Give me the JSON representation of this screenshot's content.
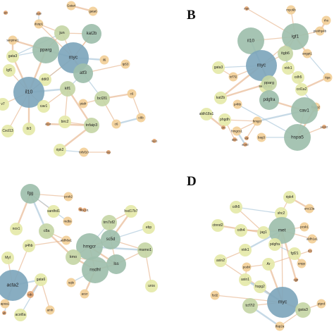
{
  "panels": [
    {
      "letter": "",
      "nodes": [
        {
          "id": "sirt",
          "label": "sirt"
        },
        {
          "id": "ppar",
          "label": "ppar"
        },
        {
          "id": "gata4",
          "label": "Gata4"
        },
        {
          "id": "gata6",
          "label": "gata6"
        },
        {
          "id": "dusp1",
          "label": "dusp1"
        },
        {
          "id": "jun",
          "label": "jun"
        },
        {
          "id": "serpine1",
          "label": "serpine1"
        },
        {
          "id": "kat2b",
          "label": "kat2b"
        },
        {
          "id": "pparg",
          "label": "pparg"
        },
        {
          "id": "myc",
          "label": "myc"
        },
        {
          "id": "gata3",
          "label": "gata3"
        },
        {
          "id": "igf1",
          "label": "Igf1"
        },
        {
          "id": "il6",
          "label": "il6"
        },
        {
          "id": "tp53",
          "label": "tp53"
        },
        {
          "id": "ddit3",
          "label": "ddit3"
        },
        {
          "id": "atf3",
          "label": "atf3"
        },
        {
          "id": "il10",
          "label": "il10"
        },
        {
          "id": "klf1",
          "label": "klf1"
        },
        {
          "id": "cav1",
          "label": "cav1"
        },
        {
          "id": "bcl2l1",
          "label": "bcl2l1"
        },
        {
          "id": "c6a",
          "label": "c6"
        },
        {
          "id": "v7",
          "label": "v7"
        },
        {
          "id": "ptafr",
          "label": "ptafr"
        },
        {
          "id": "birc2",
          "label": "birc2"
        },
        {
          "id": "c8b",
          "label": "c8b"
        },
        {
          "id": "cxcl13",
          "label": "Cxcl13"
        },
        {
          "id": "tlr3",
          "label": "tlr3"
        },
        {
          "id": "nfrsf",
          "label": "nfrsf"
        },
        {
          "id": "tnfaip3",
          "label": "tnfaip3"
        },
        {
          "id": "c6b",
          "label": "c6"
        },
        {
          "id": "ripk2",
          "label": "ripk2"
        },
        {
          "id": "tnfsf10",
          "label": "tnfsf10"
        },
        {
          "id": "trip",
          "label": "trip"
        },
        {
          "id": "nox1",
          "label": "nox1"
        }
      ],
      "edges": [
        [
          "myc",
          "pparg"
        ],
        [
          "myc",
          "jun"
        ],
        [
          "myc",
          "kat2b"
        ],
        [
          "myc",
          "atf3"
        ],
        [
          "myc",
          "il10"
        ],
        [
          "myc",
          "ddit3"
        ],
        [
          "pparg",
          "il10"
        ],
        [
          "pparg",
          "jun"
        ],
        [
          "pparg",
          "gata3"
        ],
        [
          "pparg",
          "serpine1"
        ],
        [
          "il10",
          "igf1"
        ],
        [
          "il10",
          "cav1"
        ],
        [
          "il10",
          "klf1"
        ],
        [
          "il10",
          "v7"
        ],
        [
          "il10",
          "cxcl13"
        ],
        [
          "il10",
          "gata3"
        ],
        [
          "klf1",
          "atf3"
        ],
        [
          "klf1",
          "birc2"
        ],
        [
          "klf1",
          "tnfaip3"
        ],
        [
          "klf1",
          "cav1"
        ],
        [
          "atf3",
          "bcl2l1"
        ],
        [
          "bcl2l1",
          "c6a"
        ],
        [
          "bcl2l1",
          "ptafr"
        ],
        [
          "c6a",
          "c8b"
        ],
        [
          "c6b",
          "c8b"
        ],
        [
          "c6b",
          "bcl2l1"
        ],
        [
          "birc2",
          "tnfaip3"
        ],
        [
          "tnfaip3",
          "ripk2"
        ],
        [
          "ripk2",
          "tnfsf10"
        ],
        [
          "tnfsf10",
          "trip"
        ],
        [
          "tlr3",
          "il10"
        ],
        [
          "jun",
          "kat2b"
        ],
        [
          "jun",
          "gata3"
        ],
        [
          "gata4",
          "gata6"
        ],
        [
          "dusp1",
          "jun"
        ],
        [
          "dusp1",
          "myc"
        ],
        [
          "il6",
          "myc"
        ],
        [
          "tp53",
          "atf3"
        ],
        [
          "ddit3",
          "il10"
        ],
        [
          "nfrsf",
          "tnfaip3"
        ],
        [
          "ppar",
          "dusp1"
        ],
        [
          "kat2b",
          "myc"
        ],
        [
          "serpine1",
          "gata3"
        ]
      ]
    },
    {
      "letter": "B",
      "nodes": [
        {
          "id": "myb",
          "label": "myb"
        },
        {
          "id": "myo6b",
          "label": "myo6b"
        },
        {
          "id": "igf1",
          "label": "igf1"
        },
        {
          "id": "il10",
          "label": "il10"
        },
        {
          "id": "rho",
          "label": "rho"
        },
        {
          "id": "plekh",
          "label": "plekhp4b"
        },
        {
          "id": "myc",
          "label": "myc"
        },
        {
          "id": "itgb6",
          "label": "itgb6"
        },
        {
          "id": "angpt1",
          "label": "angpt1"
        },
        {
          "id": "gata3",
          "label": "gata3"
        },
        {
          "id": "ntrk1",
          "label": "ntrk1"
        },
        {
          "id": "tcf7l2",
          "label": "tcf7l2"
        },
        {
          "id": "itga",
          "label": "itga"
        },
        {
          "id": "cdh5",
          "label": "cdh5"
        },
        {
          "id": "col1a2",
          "label": "col1a2"
        },
        {
          "id": "serpine1",
          "label": "serpine1"
        },
        {
          "id": "pparg",
          "label": "pparg"
        },
        {
          "id": "kat2b",
          "label": "kat2b"
        },
        {
          "id": "pdgfra",
          "label": "pdgfra"
        },
        {
          "id": "hspg2",
          "label": "hspg2"
        },
        {
          "id": "aldh18a1",
          "label": "aldh18a1"
        },
        {
          "id": "phgdh",
          "label": "phgdh"
        },
        {
          "id": "hmgcr",
          "label": "hmgcr"
        },
        {
          "id": "cav1",
          "label": "cav1"
        },
        {
          "id": "hmgcs1",
          "label": "hmgcs1"
        },
        {
          "id": "bag3",
          "label": "bag3"
        },
        {
          "id": "hspa5",
          "label": "hspa5"
        },
        {
          "id": "cth",
          "label": "cth"
        },
        {
          "id": "ldlr",
          "label": "ldlr"
        },
        {
          "id": "acat2",
          "label": "acat2"
        },
        {
          "id": "asns",
          "label": "asns"
        },
        {
          "id": "sesn2",
          "label": "sesn2"
        },
        {
          "id": "p4hb",
          "label": "p4hb"
        }
      ],
      "edges": [
        [
          "myc",
          "il10"
        ],
        [
          "myc",
          "igf1"
        ],
        [
          "myc",
          "itgb6"
        ],
        [
          "myc",
          "pparg"
        ],
        [
          "myc",
          "gata3"
        ],
        [
          "myc",
          "tcf7l2"
        ],
        [
          "myc",
          "kat2b"
        ],
        [
          "il10",
          "igf1"
        ],
        [
          "il10",
          "pparg"
        ],
        [
          "igf1",
          "angpt1"
        ],
        [
          "igf1",
          "itgb6"
        ],
        [
          "igf1",
          "myo6b"
        ],
        [
          "itgb6",
          "ntrk1"
        ],
        [
          "ntrk1",
          "cdh5"
        ],
        [
          "cdh5",
          "col1a2"
        ],
        [
          "col1a2",
          "itga"
        ],
        [
          "angpt1",
          "itga"
        ],
        [
          "serpine1",
          "pdgfra"
        ],
        [
          "pdgfra",
          "cav1"
        ],
        [
          "cav1",
          "hspa5"
        ],
        [
          "hspa5",
          "bag3"
        ],
        [
          "hspa5",
          "hspg2"
        ],
        [
          "hmgcr",
          "hmgcs1"
        ],
        [
          "hmgcr",
          "ldlr"
        ],
        [
          "hmgcs1",
          "acat2"
        ],
        [
          "phgdh",
          "asns"
        ],
        [
          "phgdh",
          "hmgcr"
        ],
        [
          "aldh18a1",
          "cth"
        ],
        [
          "hspg2",
          "col1a2"
        ],
        [
          "pparg",
          "serpine1"
        ],
        [
          "kat2b",
          "pparg"
        ],
        [
          "sesn2",
          "hspa5"
        ],
        [
          "p4hb",
          "hspa5"
        ],
        [
          "rho",
          "plekh"
        ],
        [
          "plekh",
          "igf1"
        ],
        [
          "myb",
          "igf1"
        ],
        [
          "cav1",
          "hmgcr"
        ],
        [
          "gata3",
          "tcf7l2"
        ]
      ]
    },
    {
      "letter": "",
      "nodes": [
        {
          "id": "fgg",
          "label": "fgg"
        },
        {
          "id": "pcsk2",
          "label": "pcsk2"
        },
        {
          "id": "sardh1",
          "label": "sardhd1"
        },
        {
          "id": "ftl",
          "label": "ftl"
        },
        {
          "id": "npc1l1",
          "label": "npc1l1"
        },
        {
          "id": "hsd17b7",
          "label": "hsd17b7"
        },
        {
          "id": "tm7sf2",
          "label": "tm7sf2"
        },
        {
          "id": "nox1",
          "label": "nox1"
        },
        {
          "id": "c8a",
          "label": "c8a"
        },
        {
          "id": "mdbs",
          "label": "mdbs"
        },
        {
          "id": "ebp",
          "label": "ebp"
        },
        {
          "id": "sc5d",
          "label": "sc5d"
        },
        {
          "id": "aldh8a1",
          "label": "aldh8a1"
        },
        {
          "id": "hmgcr",
          "label": "hmgcr"
        },
        {
          "id": "p4hb",
          "label": "p4hb"
        },
        {
          "id": "msmo1",
          "label": "msmo1"
        },
        {
          "id": "kmo",
          "label": "kmo"
        },
        {
          "id": "lss",
          "label": "lss"
        },
        {
          "id": "myl",
          "label": "Myl"
        },
        {
          "id": "nsdhl",
          "label": "nsdhl"
        },
        {
          "id": "acta2",
          "label": "acta2"
        },
        {
          "id": "gata6",
          "label": "gata6"
        },
        {
          "id": "sqle",
          "label": "sqle"
        },
        {
          "id": "acer",
          "label": "acer"
        },
        {
          "id": "uros",
          "label": "uros"
        },
        {
          "id": "cdc",
          "label": "cdc"
        },
        {
          "id": "apoa1",
          "label": "apoa1"
        },
        {
          "id": "acot6a",
          "label": "acot6a"
        },
        {
          "id": "amh",
          "label": "amh"
        },
        {
          "id": "ab",
          "label": "ab"
        }
      ],
      "edges": [
        [
          "fgg",
          "c8a"
        ],
        [
          "fgg",
          "pcsk2"
        ],
        [
          "fgg",
          "sardh1"
        ],
        [
          "fgg",
          "nox1"
        ],
        [
          "fgg",
          "mdbs"
        ],
        [
          "c8a",
          "aldh8a1"
        ],
        [
          "c8a",
          "kmo"
        ],
        [
          "hmgcr",
          "sc5d"
        ],
        [
          "hmgcr",
          "tm7sf2"
        ],
        [
          "hmgcr",
          "lss"
        ],
        [
          "hmgcr",
          "nsdhl"
        ],
        [
          "hmgcr",
          "kmo"
        ],
        [
          "hmgcr",
          "msmo1"
        ],
        [
          "sc5d",
          "tm7sf2"
        ],
        [
          "sc5d",
          "lss"
        ],
        [
          "sc5d",
          "hsd17b7"
        ],
        [
          "sc5d",
          "ebp"
        ],
        [
          "sc5d",
          "msmo1"
        ],
        [
          "lss",
          "nsdhl"
        ],
        [
          "lss",
          "msmo1"
        ],
        [
          "nsdhl",
          "sqle"
        ],
        [
          "nsdhl",
          "kmo"
        ],
        [
          "tm7sf2",
          "hsd17b7"
        ],
        [
          "acta2",
          "myl"
        ],
        [
          "acta2",
          "gata6"
        ],
        [
          "acta2",
          "apoa1"
        ],
        [
          "acta2",
          "p4hb"
        ],
        [
          "gata6",
          "cdc"
        ],
        [
          "gata6",
          "acot6a"
        ],
        [
          "amh",
          "gata6"
        ],
        [
          "acer",
          "nsdhl"
        ],
        [
          "uros",
          "msmo1"
        ],
        [
          "ab",
          "acta2"
        ],
        [
          "ftl",
          "npc1l1"
        ],
        [
          "p4hb",
          "aldh8a1"
        ],
        [
          "kmo",
          "lss"
        ]
      ]
    },
    {
      "letter": "D",
      "nodes": [
        {
          "id": "ripk4",
          "label": "ripk4"
        },
        {
          "id": "cdh5",
          "label": "cdh5"
        },
        {
          "id": "shc2",
          "label": "shc2"
        },
        {
          "id": "unc13a",
          "label": "unc13a"
        },
        {
          "id": "ctnnd2",
          "label": "ctnnd2"
        },
        {
          "id": "cdh4",
          "label": "cdh4"
        },
        {
          "id": "met",
          "label": "met"
        },
        {
          "id": "pcsk1",
          "label": "pcsk1"
        },
        {
          "id": "jag1",
          "label": "jag1"
        },
        {
          "id": "aldh1a1",
          "label": "aldh1a1"
        },
        {
          "id": "pdgfra",
          "label": "pdgfra"
        },
        {
          "id": "ntrk1",
          "label": "ntrk1"
        },
        {
          "id": "fgf21",
          "label": "fgf21"
        },
        {
          "id": "lrrc",
          "label": "lrrc"
        },
        {
          "id": "axin2",
          "label": "axin2"
        },
        {
          "id": "podxl",
          "label": "podxl"
        },
        {
          "id": "ar",
          "label": "Ar"
        },
        {
          "id": "enpp",
          "label": "enpp"
        },
        {
          "id": "axin1",
          "label": "axin1"
        },
        {
          "id": "fzd2",
          "label": "fzd2"
        },
        {
          "id": "hspg2",
          "label": "hspg2"
        },
        {
          "id": "myc",
          "label": "myc"
        },
        {
          "id": "tcf7l2",
          "label": "tcf7l2"
        },
        {
          "id": "gata3",
          "label": "gata3"
        },
        {
          "id": "tfap2a",
          "label": "tfap2a"
        },
        {
          "id": "ptprd",
          "label": "ptprd"
        },
        {
          "id": "ngfr",
          "label": "ngfr"
        }
      ],
      "edges": [
        [
          "myc",
          "axin1"
        ],
        [
          "myc",
          "axin2"
        ],
        [
          "myc",
          "tcf7l2"
        ],
        [
          "myc",
          "gata3"
        ],
        [
          "myc",
          "hspg2"
        ],
        [
          "myc",
          "fzd2"
        ],
        [
          "myc",
          "ar"
        ],
        [
          "myc",
          "met"
        ],
        [
          "met",
          "jag1"
        ],
        [
          "met",
          "pdgfra"
        ],
        [
          "met",
          "cdh4"
        ],
        [
          "met",
          "aldh1a1"
        ],
        [
          "met",
          "ntrk1"
        ],
        [
          "met",
          "pcsk1"
        ],
        [
          "jag1",
          "cdh5"
        ],
        [
          "jag1",
          "ctnnd2"
        ],
        [
          "cdh5",
          "shc2"
        ],
        [
          "shc2",
          "ripk4"
        ],
        [
          "ripk4",
          "unc13a"
        ],
        [
          "ntrk1",
          "axin2"
        ],
        [
          "pdgfra",
          "fgf21"
        ],
        [
          "fgf21",
          "enpp"
        ],
        [
          "lrrc",
          "ar"
        ],
        [
          "axin1",
          "podxl"
        ],
        [
          "tcf7l2",
          "tfap2a"
        ],
        [
          "gata3",
          "ptprd"
        ],
        [
          "gata3",
          "tfap2a"
        ],
        [
          "ngfr",
          "met"
        ],
        [
          "hspg2",
          "axin1"
        ],
        [
          "ar",
          "podxl"
        ]
      ]
    }
  ],
  "colors": {
    "hub_blue": "#7ea6bc",
    "hub_teal": "#9ebfad",
    "mid_green": "#c6d6a6",
    "small_yellow": "#e5e9a9",
    "peach": "#f2cf98",
    "orange": "#e2a572",
    "edge_warm": "#e7b48c",
    "edge_blue": "#a8c4d8"
  }
}
